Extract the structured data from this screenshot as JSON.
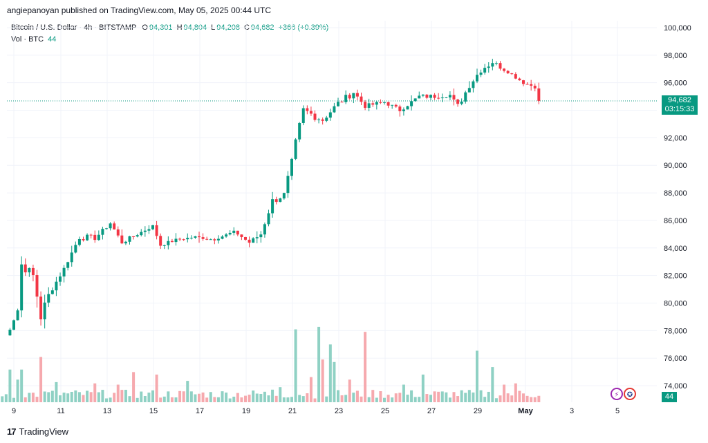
{
  "header": {
    "attribution": "angiepanoyan published on TradingView.com, May 05, 2025 00:44 UTC"
  },
  "legend": {
    "symbol": "Bitcoin / U.S. Dollar · 4h · BITSTAMP",
    "o_label": "O",
    "o_value": "94,301",
    "h_label": "H",
    "h_value": "94,804",
    "l_label": "L",
    "l_value": "94,208",
    "c_label": "C",
    "c_value": "94,682",
    "change": "+366 (+0.39%)",
    "vol_label": "Vol · BTC",
    "vol_value": "44"
  },
  "price_tag": {
    "price": "94,682",
    "countdown": "03:15:33"
  },
  "volume_tag": "44",
  "footer": {
    "logo_text": "TradingView",
    "logo_icon": "17"
  },
  "icons": {
    "bolt": "⚡",
    "flag": "✪"
  },
  "colors": {
    "up": "#089981",
    "down": "#F23645",
    "up_vol": "#8FD1C4",
    "down_vol": "#F6A9AE",
    "grid": "#F0F3FA"
  },
  "chart_data": {
    "type": "candlestick",
    "title": "Bitcoin / U.S. Dollar · 4h · BITSTAMP",
    "ylim": [
      72800,
      100500
    ],
    "y_ticks": [
      "74,000",
      "76,000",
      "78,000",
      "80,000",
      "82,000",
      "84,000",
      "86,000",
      "88,000",
      "90,000",
      "92,000",
      "94,000",
      "96,000",
      "98,000",
      "100,000"
    ],
    "x_ticks": [
      "9",
      "11",
      "13",
      "15",
      "17",
      "19",
      "21",
      "23",
      "25",
      "27",
      "29",
      "May",
      "3",
      "5"
    ],
    "current_price": 94682,
    "anchors": [
      [
        0,
        77000,
        0.8
      ],
      [
        4,
        79500,
        1.0
      ],
      [
        5,
        82800,
        1.2
      ],
      [
        8,
        82000,
        0.6
      ],
      [
        10,
        79000,
        1.4
      ],
      [
        12,
        80600,
        0.6
      ],
      [
        16,
        82500,
        0.5
      ],
      [
        20,
        84800,
        0.8
      ],
      [
        24,
        84700,
        0.5
      ],
      [
        28,
        85800,
        0.4
      ],
      [
        31,
        84400,
        0.5
      ],
      [
        35,
        85000,
        0.4
      ],
      [
        39,
        85600,
        0.3
      ],
      [
        41,
        84200,
        0.4
      ],
      [
        45,
        84600,
        0.3
      ],
      [
        50,
        84800,
        0.3
      ],
      [
        55,
        84600,
        0.2
      ],
      [
        60,
        85200,
        0.2
      ],
      [
        64,
        84400,
        0.5
      ],
      [
        67,
        85000,
        0.5
      ],
      [
        70,
        87400,
        1.0
      ],
      [
        73,
        87900,
        0.6
      ],
      [
        76,
        91500,
        1.5
      ],
      [
        78,
        94000,
        1.0
      ],
      [
        83,
        93300,
        0.8
      ],
      [
        87,
        94500,
        0.8
      ],
      [
        91,
        95300,
        0.6
      ],
      [
        94,
        94300,
        0.5
      ],
      [
        99,
        94600,
        0.5
      ],
      [
        103,
        94000,
        0.5
      ],
      [
        108,
        95000,
        0.6
      ],
      [
        112,
        95000,
        0.5
      ],
      [
        116,
        95100,
        0.4
      ],
      [
        118,
        94300,
        0.8
      ],
      [
        120,
        95300,
        0.4
      ],
      [
        124,
        97000,
        1.0
      ],
      [
        127,
        97500,
        0.6
      ],
      [
        131,
        96800,
        0.4
      ],
      [
        135,
        96000,
        0.4
      ],
      [
        138,
        95700,
        0.4
      ],
      [
        139,
        94682,
        0.3
      ]
    ],
    "volume_ylim": [
      0,
      330
    ],
    "volume_spikes": {
      "2": 130,
      "4": 90,
      "5": 130,
      "10": 180,
      "14": 80,
      "24": 75,
      "30": 70,
      "34": 120,
      "40": 110,
      "48": 85,
      "70": 50,
      "72": 60,
      "76": 290,
      "80": 100,
      "82": 300,
      "83": 170,
      "85": 230,
      "86": 160,
      "90": 90,
      "94": 280,
      "104": 70,
      "109": 110,
      "123": 205,
      "127": 140,
      "130": 70,
      "133": 75,
      "140": 70
    }
  }
}
